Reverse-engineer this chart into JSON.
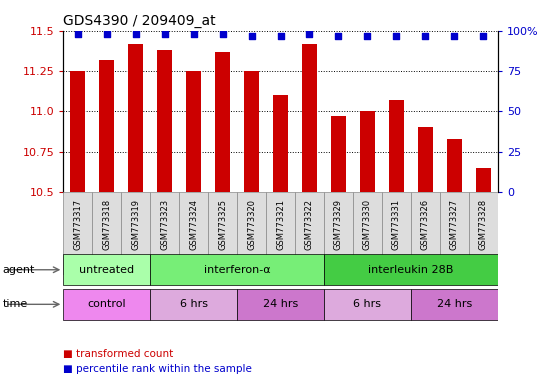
{
  "title": "GDS4390 / 209409_at",
  "samples": [
    "GSM773317",
    "GSM773318",
    "GSM773319",
    "GSM773323",
    "GSM773324",
    "GSM773325",
    "GSM773320",
    "GSM773321",
    "GSM773322",
    "GSM773329",
    "GSM773330",
    "GSM773331",
    "GSM773326",
    "GSM773327",
    "GSM773328"
  ],
  "bar_values": [
    11.25,
    11.32,
    11.42,
    11.38,
    11.25,
    11.37,
    11.25,
    11.1,
    11.42,
    10.97,
    11.0,
    11.07,
    10.9,
    10.83,
    10.65
  ],
  "dot_values": [
    98,
    98,
    98,
    98,
    98,
    98,
    97,
    97,
    98,
    97,
    97,
    97,
    97,
    97,
    97
  ],
  "ylim_left": [
    10.5,
    11.5
  ],
  "ylim_right": [
    0,
    100
  ],
  "yticks_left": [
    10.5,
    10.75,
    11.0,
    11.25,
    11.5
  ],
  "yticks_right": [
    0,
    25,
    50,
    75,
    100
  ],
  "bar_color": "#cc0000",
  "dot_color": "#0000cc",
  "agent_labels": [
    {
      "text": "untreated",
      "start": 0,
      "end": 3,
      "color": "#aaffaa"
    },
    {
      "text": "interferon-α",
      "start": 3,
      "end": 9,
      "color": "#77ee77"
    },
    {
      "text": "interleukin 28B",
      "start": 9,
      "end": 15,
      "color": "#44cc44"
    }
  ],
  "time_labels": [
    {
      "text": "control",
      "start": 0,
      "end": 3,
      "color": "#ee88ee"
    },
    {
      "text": "6 hrs",
      "start": 3,
      "end": 6,
      "color": "#ddaadd"
    },
    {
      "text": "24 hrs",
      "start": 6,
      "end": 9,
      "color": "#cc77cc"
    },
    {
      "text": "6 hrs",
      "start": 9,
      "end": 12,
      "color": "#ddaadd"
    },
    {
      "text": "24 hrs",
      "start": 12,
      "end": 15,
      "color": "#cc77cc"
    }
  ],
  "legend_items": [
    {
      "label": "transformed count",
      "color": "#cc0000"
    },
    {
      "label": "percentile rank within the sample",
      "color": "#0000cc"
    }
  ],
  "plot_bg": "#ffffff",
  "sample_label_bg": "#dddddd",
  "sample_label_border": "#888888"
}
